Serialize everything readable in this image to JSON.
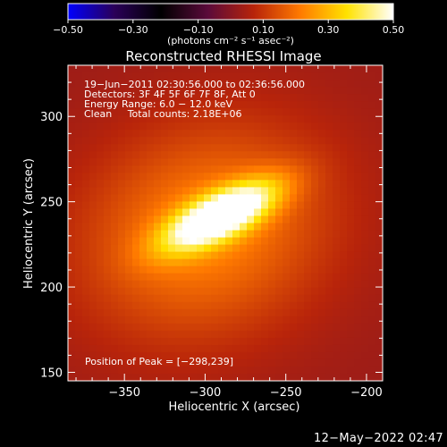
{
  "chart_data": {
    "type": "heatmap",
    "title": "Reconstructed RHESSI Image",
    "xlabel": "Heliocentric X (arcsec)",
    "ylabel": "Heliocentric Y (arcsec)",
    "xlim": [
      -385,
      -190
    ],
    "ylim": [
      145,
      330
    ],
    "xticks": [
      -350,
      -300,
      -250,
      -200
    ],
    "xtick_labels": [
      "−350",
      "−300",
      "−250",
      "−200"
    ],
    "yticks": [
      150,
      200,
      250,
      300
    ],
    "ytick_labels": [
      "150",
      "200",
      "250",
      "300"
    ],
    "colorbar": {
      "range": [
        -0.5,
        0.5
      ],
      "ticks": [
        -0.5,
        -0.3,
        -0.1,
        0.1,
        0.3,
        0.5
      ],
      "tick_labels": [
        "−0.50",
        "−0.30",
        "−0.10",
        "0.10",
        "0.30",
        "0.50"
      ],
      "label": "(photons cm⁻² s⁻¹ asec⁻²)",
      "colors": [
        "#0000ff",
        "#2a0058",
        "#000000",
        "#5a0a3a",
        "#b8240a",
        "#ff7a00",
        "#ffe200",
        "#ffffff"
      ]
    },
    "annotations": [
      "19−Jun−2011 02:30:56.000 to 02:36:56.000",
      "Detectors: 3F 4F 5F 6F 7F 8F, Att 0",
      "Energy Range: 6.0 − 12.0 keV",
      "Clean     Total counts: 2.18E+06"
    ],
    "peak_label": "Position of Peak = [−298,239]",
    "peak": {
      "x": -298,
      "y": 239
    },
    "source": {
      "center": {
        "x": -290,
        "y": 242
      },
      "core": {
        "angle_deg": 25,
        "sx": 26,
        "sy": 9,
        "amp": 0.5
      },
      "halo": {
        "angle_deg": 18,
        "sx": 55,
        "sy": 43,
        "amp": 0.2,
        "center": {
          "x": -300,
          "y": 233
        }
      }
    }
  },
  "footer": {
    "timestamp": "12−May−2022 02:47"
  }
}
